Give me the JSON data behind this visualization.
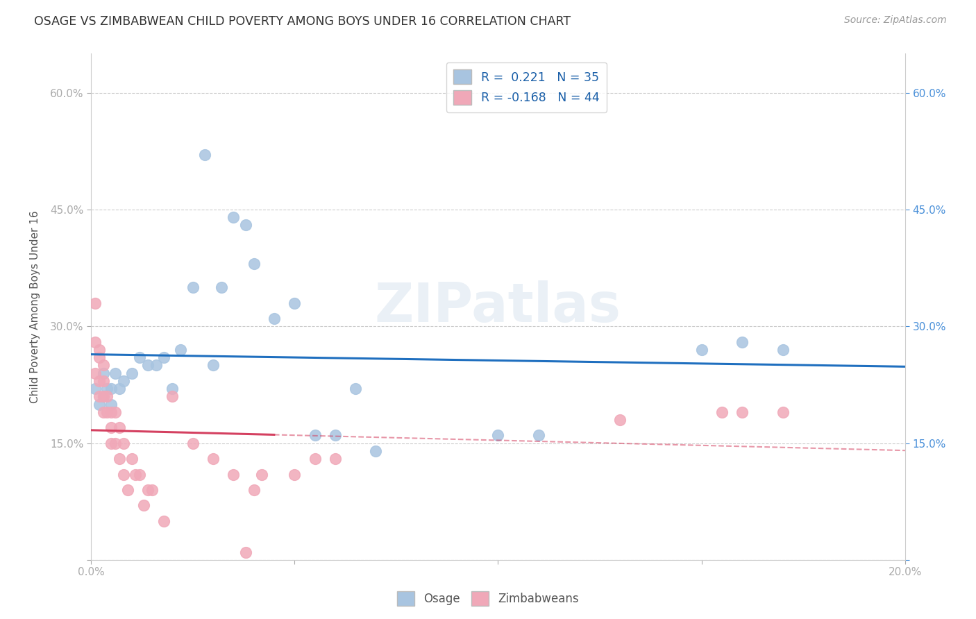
{
  "title": "OSAGE VS ZIMBABWEAN CHILD POVERTY AMONG BOYS UNDER 16 CORRELATION CHART",
  "source": "Source: ZipAtlas.com",
  "ylabel": "Child Poverty Among Boys Under 16",
  "xlim": [
    0.0,
    0.2
  ],
  "ylim": [
    0.0,
    0.65
  ],
  "xtick_positions": [
    0.0,
    0.05,
    0.1,
    0.15,
    0.2
  ],
  "xtick_labels": [
    "0.0%",
    "",
    "",
    "",
    "20.0%"
  ],
  "ytick_positions": [
    0.0,
    0.15,
    0.3,
    0.45,
    0.6
  ],
  "ytick_labels_left": [
    "",
    "15.0%",
    "30.0%",
    "45.0%",
    "60.0%"
  ],
  "ytick_labels_right": [
    "",
    "15.0%",
    "30.0%",
    "45.0%",
    "60.0%"
  ],
  "osage_R": 0.221,
  "osage_N": 35,
  "zimb_R": -0.168,
  "zimb_N": 44,
  "osage_color": "#a8c4e0",
  "osage_line_color": "#1f6fbf",
  "zimb_color": "#f0a8b8",
  "zimb_line_color": "#d44060",
  "background_color": "#ffffff",
  "grid_color": "#cccccc",
  "watermark": "ZIPatlas",
  "osage_x": [
    0.001,
    0.002,
    0.003,
    0.003,
    0.004,
    0.005,
    0.005,
    0.006,
    0.007,
    0.008,
    0.01,
    0.012,
    0.014,
    0.016,
    0.018,
    0.02,
    0.022,
    0.025,
    0.028,
    0.03,
    0.032,
    0.035,
    0.038,
    0.04,
    0.045,
    0.05,
    0.055,
    0.06,
    0.065,
    0.07,
    0.1,
    0.11,
    0.15,
    0.16,
    0.17
  ],
  "osage_y": [
    0.22,
    0.2,
    0.24,
    0.21,
    0.22,
    0.2,
    0.22,
    0.24,
    0.22,
    0.23,
    0.24,
    0.26,
    0.25,
    0.25,
    0.26,
    0.22,
    0.27,
    0.35,
    0.52,
    0.25,
    0.35,
    0.44,
    0.43,
    0.38,
    0.31,
    0.33,
    0.16,
    0.16,
    0.22,
    0.14,
    0.16,
    0.16,
    0.27,
    0.28,
    0.27
  ],
  "zimb_x": [
    0.001,
    0.001,
    0.001,
    0.002,
    0.002,
    0.002,
    0.002,
    0.003,
    0.003,
    0.003,
    0.003,
    0.004,
    0.004,
    0.005,
    0.005,
    0.005,
    0.006,
    0.006,
    0.007,
    0.007,
    0.008,
    0.008,
    0.009,
    0.01,
    0.011,
    0.012,
    0.013,
    0.014,
    0.015,
    0.018,
    0.02,
    0.025,
    0.03,
    0.035,
    0.038,
    0.04,
    0.042,
    0.05,
    0.055,
    0.06,
    0.13,
    0.155,
    0.16,
    0.17
  ],
  "zimb_y": [
    0.33,
    0.28,
    0.24,
    0.27,
    0.26,
    0.23,
    0.21,
    0.25,
    0.23,
    0.21,
    0.19,
    0.21,
    0.19,
    0.19,
    0.17,
    0.15,
    0.19,
    0.15,
    0.17,
    0.13,
    0.15,
    0.11,
    0.09,
    0.13,
    0.11,
    0.11,
    0.07,
    0.09,
    0.09,
    0.05,
    0.21,
    0.15,
    0.13,
    0.11,
    0.01,
    0.09,
    0.11,
    0.11,
    0.13,
    0.13,
    0.18,
    0.19,
    0.19,
    0.19
  ]
}
